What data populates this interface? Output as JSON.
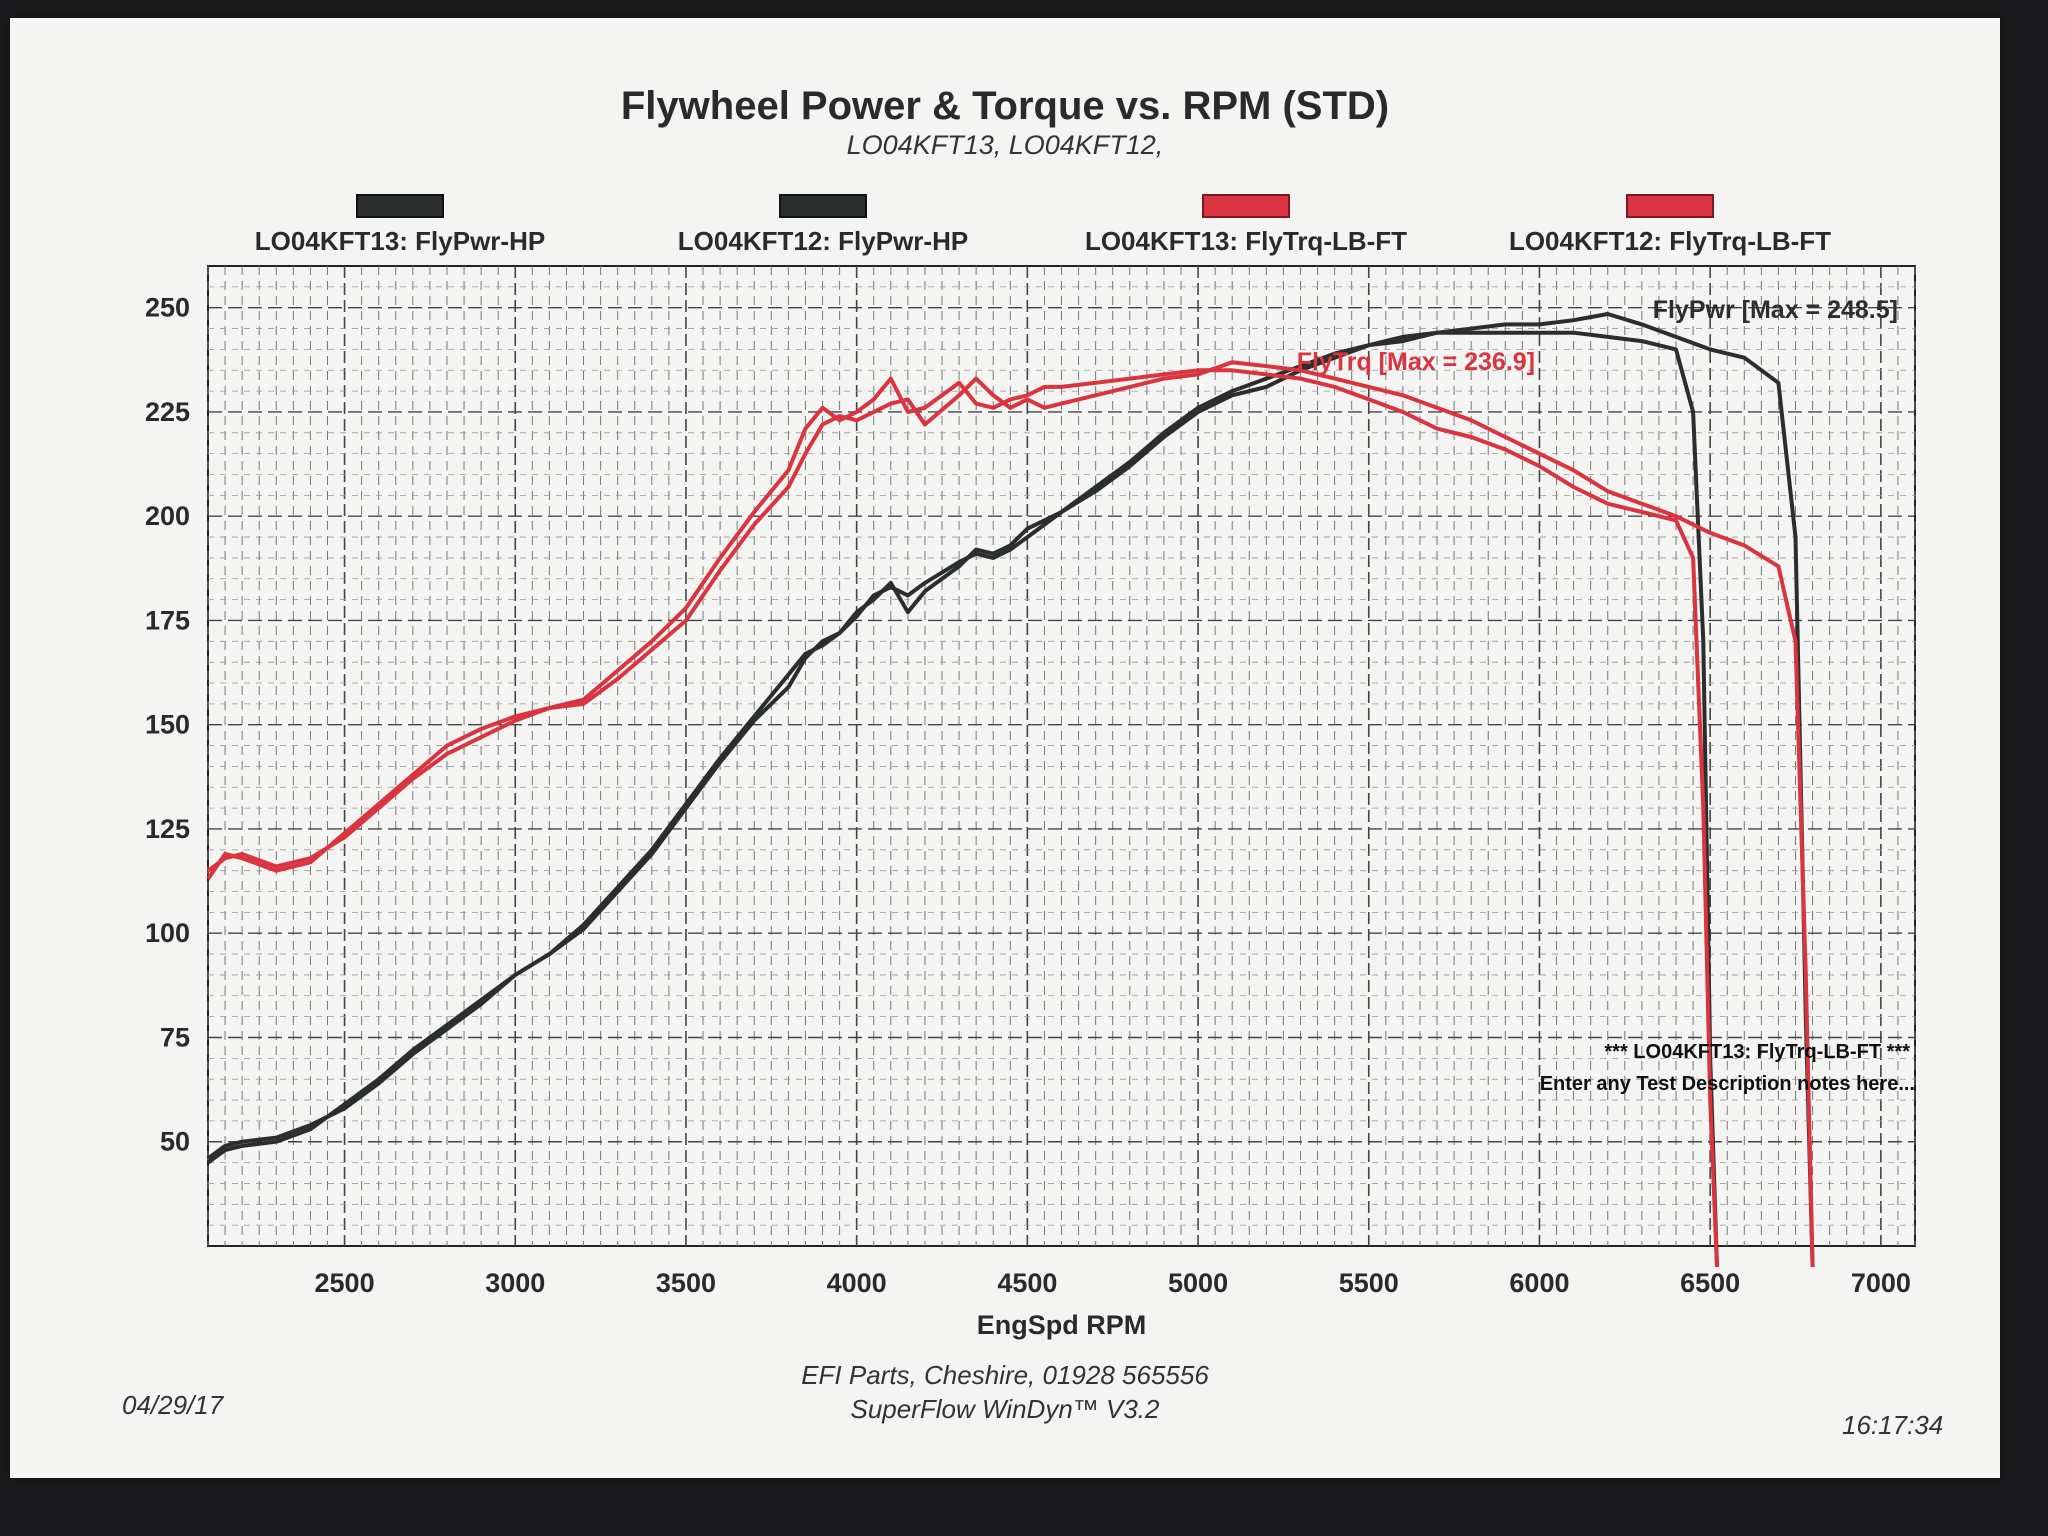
{
  "colors": {
    "power": "#2b2e2e",
    "torque": "#d9343f",
    "grid": "#666666"
  },
  "chart_data": {
    "type": "line",
    "title": "Flywheel Power & Torque vs. RPM (STD)",
    "subtitle": "LO04KFT13, LO04KFT12,",
    "xlabel": "EngSpd RPM",
    "ylabel": "",
    "xlim": [
      2100,
      7100
    ],
    "ylim": [
      25,
      260
    ],
    "x_ticks": [
      2500,
      3000,
      3500,
      4000,
      4500,
      5000,
      5500,
      6000,
      6500,
      7000
    ],
    "y_ticks": [
      50,
      75,
      100,
      125,
      150,
      175,
      200,
      225,
      250
    ],
    "grid": true,
    "legend_position": "top",
    "legend": [
      {
        "label": "LO04KFT13: FlyPwr-HP",
        "color": "#2b2e2e"
      },
      {
        "label": "LO04KFT12: FlyPwr-HP",
        "color": "#2b2e2e"
      },
      {
        "label": "LO04KFT13: FlyTrq-LB-FT",
        "color": "#d9343f"
      },
      {
        "label": "LO04KFT12: FlyTrq-LB-FT",
        "color": "#d9343f"
      }
    ],
    "series": [
      {
        "name": "LO04KFT13: FlyPwr-HP",
        "color": "#2b2e2e",
        "x": [
          2100,
          2150,
          2200,
          2300,
          2400,
          2500,
          2600,
          2700,
          2800,
          2900,
          3000,
          3100,
          3200,
          3300,
          3400,
          3500,
          3600,
          3700,
          3800,
          3850,
          3900,
          3950,
          4000,
          4050,
          4100,
          4150,
          4200,
          4300,
          4350,
          4400,
          4450,
          4500,
          4600,
          4700,
          4800,
          4900,
          5000,
          5100,
          5200,
          5300,
          5400,
          5500,
          5600,
          5700,
          5800,
          5900,
          6000,
          6100,
          6200,
          6300,
          6400,
          6450,
          6480,
          6500,
          6520
        ],
        "y": [
          45,
          48,
          49,
          50,
          53,
          59,
          65,
          72,
          78,
          84,
          90,
          95,
          102,
          111,
          120,
          131,
          142,
          152,
          162,
          167,
          169,
          172,
          176,
          181,
          183,
          181,
          184,
          189,
          191,
          190,
          192,
          195,
          201,
          207,
          213,
          220,
          226,
          230,
          233,
          236,
          239,
          241,
          243,
          244,
          244,
          244,
          244,
          244,
          243,
          242,
          240,
          225,
          170,
          70,
          20
        ]
      },
      {
        "name": "LO04KFT12: FlyPwr-HP",
        "color": "#2b2e2e",
        "x": [
          2100,
          2150,
          2200,
          2300,
          2400,
          2500,
          2600,
          2700,
          2800,
          2900,
          3000,
          3100,
          3200,
          3300,
          3400,
          3500,
          3600,
          3700,
          3800,
          3850,
          3900,
          3950,
          4000,
          4050,
          4100,
          4150,
          4200,
          4300,
          4350,
          4400,
          4450,
          4500,
          4550,
          4600,
          4700,
          4800,
          4900,
          5000,
          5100,
          5200,
          5300,
          5400,
          5500,
          5600,
          5700,
          5800,
          5900,
          6000,
          6100,
          6200,
          6300,
          6400,
          6500,
          6600,
          6700,
          6750,
          6780,
          6800
        ],
        "y": [
          46,
          49,
          50,
          51,
          54,
          58,
          64,
          71,
          77,
          83,
          90,
          95,
          101,
          110,
          119,
          130,
          141,
          151,
          159,
          166,
          170,
          172,
          177,
          180,
          184,
          177,
          182,
          188,
          192,
          191,
          193,
          197,
          199,
          201,
          206,
          212,
          219,
          225,
          229,
          231,
          235,
          238,
          241,
          242,
          244,
          245,
          246,
          246,
          247,
          248.5,
          246,
          243,
          240,
          238,
          232,
          195,
          80,
          20
        ]
      },
      {
        "name": "LO04KFT13: FlyTrq-LB-FT",
        "color": "#d9343f",
        "x": [
          2100,
          2150,
          2200,
          2300,
          2400,
          2500,
          2600,
          2700,
          2800,
          2900,
          3000,
          3100,
          3200,
          3300,
          3400,
          3500,
          3600,
          3700,
          3800,
          3850,
          3900,
          3950,
          4000,
          4050,
          4100,
          4150,
          4200,
          4300,
          4350,
          4400,
          4450,
          4500,
          4550,
          4600,
          4700,
          4800,
          4900,
          5000,
          5100,
          5200,
          5300,
          5400,
          5500,
          5600,
          5700,
          5800,
          5900,
          6000,
          6100,
          6200,
          6300,
          6400,
          6450,
          6480,
          6500,
          6520
        ],
        "y": [
          113,
          119,
          118,
          115,
          117,
          124,
          131,
          138,
          145,
          149,
          152,
          154,
          156,
          163,
          170,
          178,
          190,
          201,
          211,
          221,
          226,
          223,
          225,
          228,
          233,
          225,
          226,
          232,
          227,
          226,
          228,
          229,
          231,
          231,
          232,
          233,
          234,
          235,
          235,
          234,
          233,
          231,
          228,
          225,
          221,
          219,
          216,
          212,
          207,
          203,
          201,
          199,
          190,
          130,
          60,
          20
        ]
      },
      {
        "name": "LO04KFT12: FlyTrq-LB-FT",
        "color": "#d9343f",
        "x": [
          2100,
          2150,
          2200,
          2300,
          2400,
          2500,
          2600,
          2700,
          2800,
          2900,
          3000,
          3100,
          3200,
          3300,
          3400,
          3500,
          3600,
          3700,
          3800,
          3850,
          3900,
          3950,
          4000,
          4050,
          4100,
          4150,
          4200,
          4300,
          4350,
          4400,
          4450,
          4500,
          4550,
          4600,
          4700,
          4800,
          4900,
          5000,
          5100,
          5200,
          5300,
          5400,
          5500,
          5600,
          5700,
          5800,
          5900,
          6000,
          6100,
          6200,
          6300,
          6400,
          6500,
          6600,
          6700,
          6750,
          6780,
          6800
        ],
        "y": [
          115,
          118,
          119,
          116,
          118,
          123,
          130,
          137,
          143,
          147,
          151,
          154,
          155,
          161,
          168,
          175,
          187,
          198,
          207,
          215,
          222,
          224,
          223,
          225,
          227,
          228,
          222,
          229,
          233,
          229,
          226,
          228,
          226,
          227,
          229,
          231,
          233,
          234,
          236.9,
          236,
          235,
          233,
          231,
          229,
          226,
          223,
          219,
          215,
          211,
          206,
          203,
          200,
          196,
          193,
          188,
          170,
          90,
          20
        ]
      }
    ],
    "annotations": [
      {
        "text": "FlyPwr [Max = 248.5]",
        "color": "#2b2e2e"
      },
      {
        "text": "FlyTrq [Max = 236.9]",
        "color": "#d9343f"
      },
      {
        "text": "*** LO04KFT13: FlyTrq-LB-FT ***",
        "color": "#111111"
      },
      {
        "text": "Enter any Test Description notes here...",
        "color": "#111111"
      }
    ]
  },
  "footer": {
    "date": "04/29/17",
    "company": "EFI Parts, Cheshire, 01928 565556",
    "software": "SuperFlow WinDyn™ V3.2",
    "time": "16:17:34"
  }
}
